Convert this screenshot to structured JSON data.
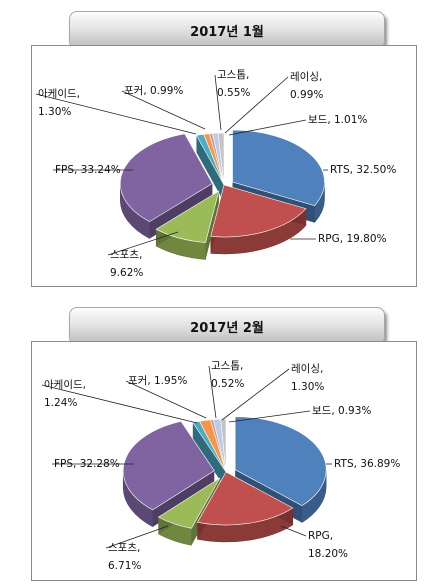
{
  "chart_data": [
    {
      "type": "pie",
      "title": "2017년 1월",
      "categories": [
        "RTS",
        "RPG",
        "스포츠",
        "FPS",
        "아케이드",
        "포커",
        "고스톱",
        "레이싱",
        "보드"
      ],
      "values": [
        32.5,
        19.8,
        9.62,
        33.24,
        1.3,
        0.99,
        0.55,
        0.99,
        1.01
      ],
      "colors": [
        "#4f81bd",
        "#c0504d",
        "#9bbb59",
        "#8064a2",
        "#4bacc6",
        "#f79646",
        "#d99694",
        "#b9cde5",
        "#c3c3c3"
      ],
      "labels": [
        [
          "RTS, 32.50%"
        ],
        [
          "RPG, 19.80%"
        ],
        [
          "스포츠,",
          "9.62%"
        ],
        [
          "FPS, 33.24%"
        ],
        [
          "아케이드,",
          "1.30%"
        ],
        [
          "포커, 0.99%"
        ],
        [
          "고스톱,",
          "0.55%"
        ],
        [
          "레이싱,",
          "0.99%"
        ],
        [
          "보드, 1.01%"
        ]
      ]
    },
    {
      "type": "pie",
      "title": "2017년 2월",
      "categories": [
        "RTS",
        "RPG",
        "스포츠",
        "FPS",
        "아케이드",
        "포커",
        "고스톱",
        "레이싱",
        "보드"
      ],
      "values": [
        36.89,
        18.2,
        6.71,
        32.28,
        1.24,
        1.95,
        0.52,
        1.3,
        0.93
      ],
      "colors": [
        "#4f81bd",
        "#c0504d",
        "#9bbb59",
        "#8064a2",
        "#4bacc6",
        "#f79646",
        "#d99694",
        "#b9cde5",
        "#c3c3c3"
      ],
      "labels": [
        [
          "RTS, 36.89%"
        ],
        [
          "RPG,",
          "18.20%"
        ],
        [
          "스포츠,",
          "6.71%"
        ],
        [
          "FPS, 32.28%"
        ],
        [
          "아케이드,",
          "1.24%"
        ],
        [
          "포커, 1.95%"
        ],
        [
          "고스톱,",
          "0.52%"
        ],
        [
          "레이싱,",
          "1.30%"
        ],
        [
          "보드, 0.93%"
        ]
      ]
    }
  ]
}
